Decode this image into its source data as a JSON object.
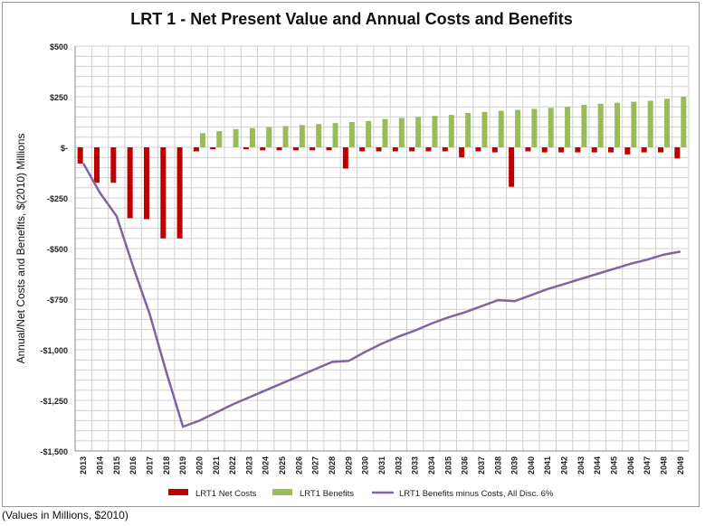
{
  "footnote": "(Values in Millions, $2010)",
  "colors": {
    "net_costs": "#c00000",
    "benefits": "#9bbb59",
    "npv_line": "#8064a2",
    "grid": "#d0d0d0",
    "axis": "#888888"
  },
  "chart_data": {
    "type": "bar",
    "title": "LRT 1 - Net Present Value and Annual Costs and Benefits",
    "xlabel": "",
    "ylabel": "Annual/Net Costs and Benefits, $(2010) Millions",
    "ylim": [
      -1500,
      500
    ],
    "yticks": [
      500,
      250,
      0,
      -250,
      -500,
      -750,
      -1000,
      -1250,
      -1500
    ],
    "ytick_labels": [
      "$500",
      "$250",
      "$-",
      "-$250",
      "-$500",
      "-$750",
      "-$1,000",
      "-$1,250",
      "-$1,500"
    ],
    "grid": true,
    "legend_position": "bottom",
    "categories": [
      "2013",
      "2014",
      "2015",
      "2016",
      "2017",
      "2018",
      "2019",
      "2020",
      "2021",
      "2022",
      "2023",
      "2024",
      "2025",
      "2026",
      "2027",
      "2028",
      "2029",
      "2030",
      "2031",
      "2032",
      "2033",
      "2034",
      "2035",
      "2036",
      "2037",
      "2038",
      "2039",
      "2040",
      "2041",
      "2042",
      "2043",
      "2044",
      "2045",
      "2046",
      "2047",
      "2048",
      "2049"
    ],
    "series": [
      {
        "name": "LRT1 Net Costs",
        "kind": "bar",
        "values": [
          -80,
          -175,
          -175,
          -350,
          -355,
          -450,
          -450,
          -20,
          -10,
          0,
          -10,
          -15,
          -15,
          -15,
          -15,
          -15,
          -105,
          -20,
          -20,
          -20,
          -20,
          -20,
          -20,
          -50,
          -20,
          -25,
          -195,
          -20,
          -25,
          -25,
          -25,
          -25,
          -25,
          -35,
          -25,
          -25,
          -55
        ]
      },
      {
        "name": "LRT1 Benefits",
        "kind": "bar",
        "values": [
          0,
          0,
          0,
          0,
          0,
          0,
          0,
          70,
          80,
          90,
          95,
          100,
          105,
          110,
          115,
          120,
          125,
          130,
          140,
          145,
          150,
          155,
          160,
          170,
          175,
          180,
          185,
          190,
          195,
          200,
          210,
          215,
          220,
          225,
          230,
          240,
          250
        ]
      },
      {
        "name": "LRT1 Benefits minus Costs, All Disc. 6%",
        "kind": "line",
        "values": [
          -80,
          -225,
          -340,
          -590,
          -825,
          -1110,
          -1380,
          -1350,
          -1310,
          -1270,
          -1235,
          -1200,
          -1165,
          -1130,
          -1095,
          -1060,
          -1055,
          -1010,
          -970,
          -935,
          -905,
          -870,
          -840,
          -815,
          -785,
          -755,
          -760,
          -730,
          -700,
          -675,
          -650,
          -625,
          -600,
          -575,
          -555,
          -530,
          -515
        ]
      }
    ]
  }
}
